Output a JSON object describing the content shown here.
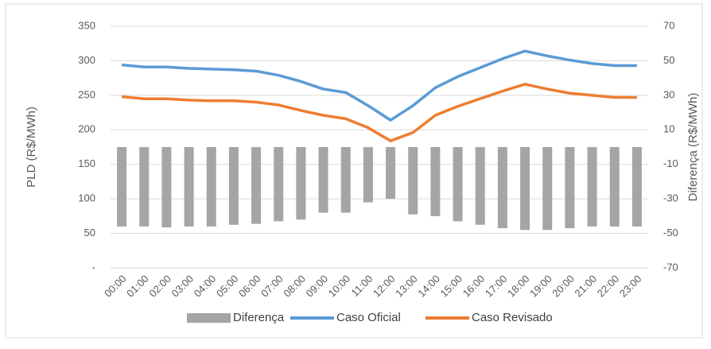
{
  "chart_data": {
    "type": "combo",
    "categories": [
      "00:00",
      "01:00",
      "02:00",
      "03:00",
      "04:00",
      "05:00",
      "06:00",
      "07:00",
      "08:00",
      "09:00",
      "10:00",
      "11:00",
      "12:00",
      "13:00",
      "14:00",
      "15:00",
      "16:00",
      "17:00",
      "18:00",
      "19:00",
      "20:00",
      "21:00",
      "22:00",
      "23:00"
    ],
    "series": [
      {
        "name": "Diferença",
        "type": "bar",
        "axis": "y2",
        "color": "#a5a5a5",
        "values": [
          -46,
          -46,
          -46.5,
          -46,
          -46,
          -45,
          -44.5,
          -43,
          -42,
          -38,
          -38,
          -32,
          -30,
          -39,
          -40,
          -43,
          -45,
          -47,
          -48,
          -48,
          -47,
          -46,
          -46,
          -46
        ]
      },
      {
        "name": "Caso Oficial",
        "type": "line",
        "color": "#5b9bd5",
        "values": [
          294,
          291,
          291,
          289,
          288,
          287,
          285,
          279,
          270,
          259,
          254,
          235,
          214,
          235,
          261,
          277,
          290,
          303,
          314,
          307,
          301,
          296,
          293,
          293
        ]
      },
      {
        "name": "Caso Revisado",
        "type": "line",
        "color": "#ed7d31",
        "values": [
          248,
          245,
          245,
          243,
          242,
          242,
          240,
          236,
          228,
          221,
          216,
          203,
          184,
          196,
          221,
          234,
          245,
          256,
          266,
          259,
          253,
          250,
          247,
          247
        ]
      }
    ],
    "y_label": "PLD (R$/MWh)",
    "y2_label": "Diferença (R$/MWh)",
    "ylim": [
      0,
      350
    ],
    "yticks": [
      {
        "value": 0,
        "label": "-"
      },
      50,
      100,
      150,
      200,
      250,
      300,
      350
    ],
    "y2lim": [
      -70,
      70
    ],
    "y2ticks": [
      -70,
      -50,
      -30,
      -10,
      10,
      30,
      50,
      70
    ],
    "grid": true,
    "legend": "bottom"
  }
}
